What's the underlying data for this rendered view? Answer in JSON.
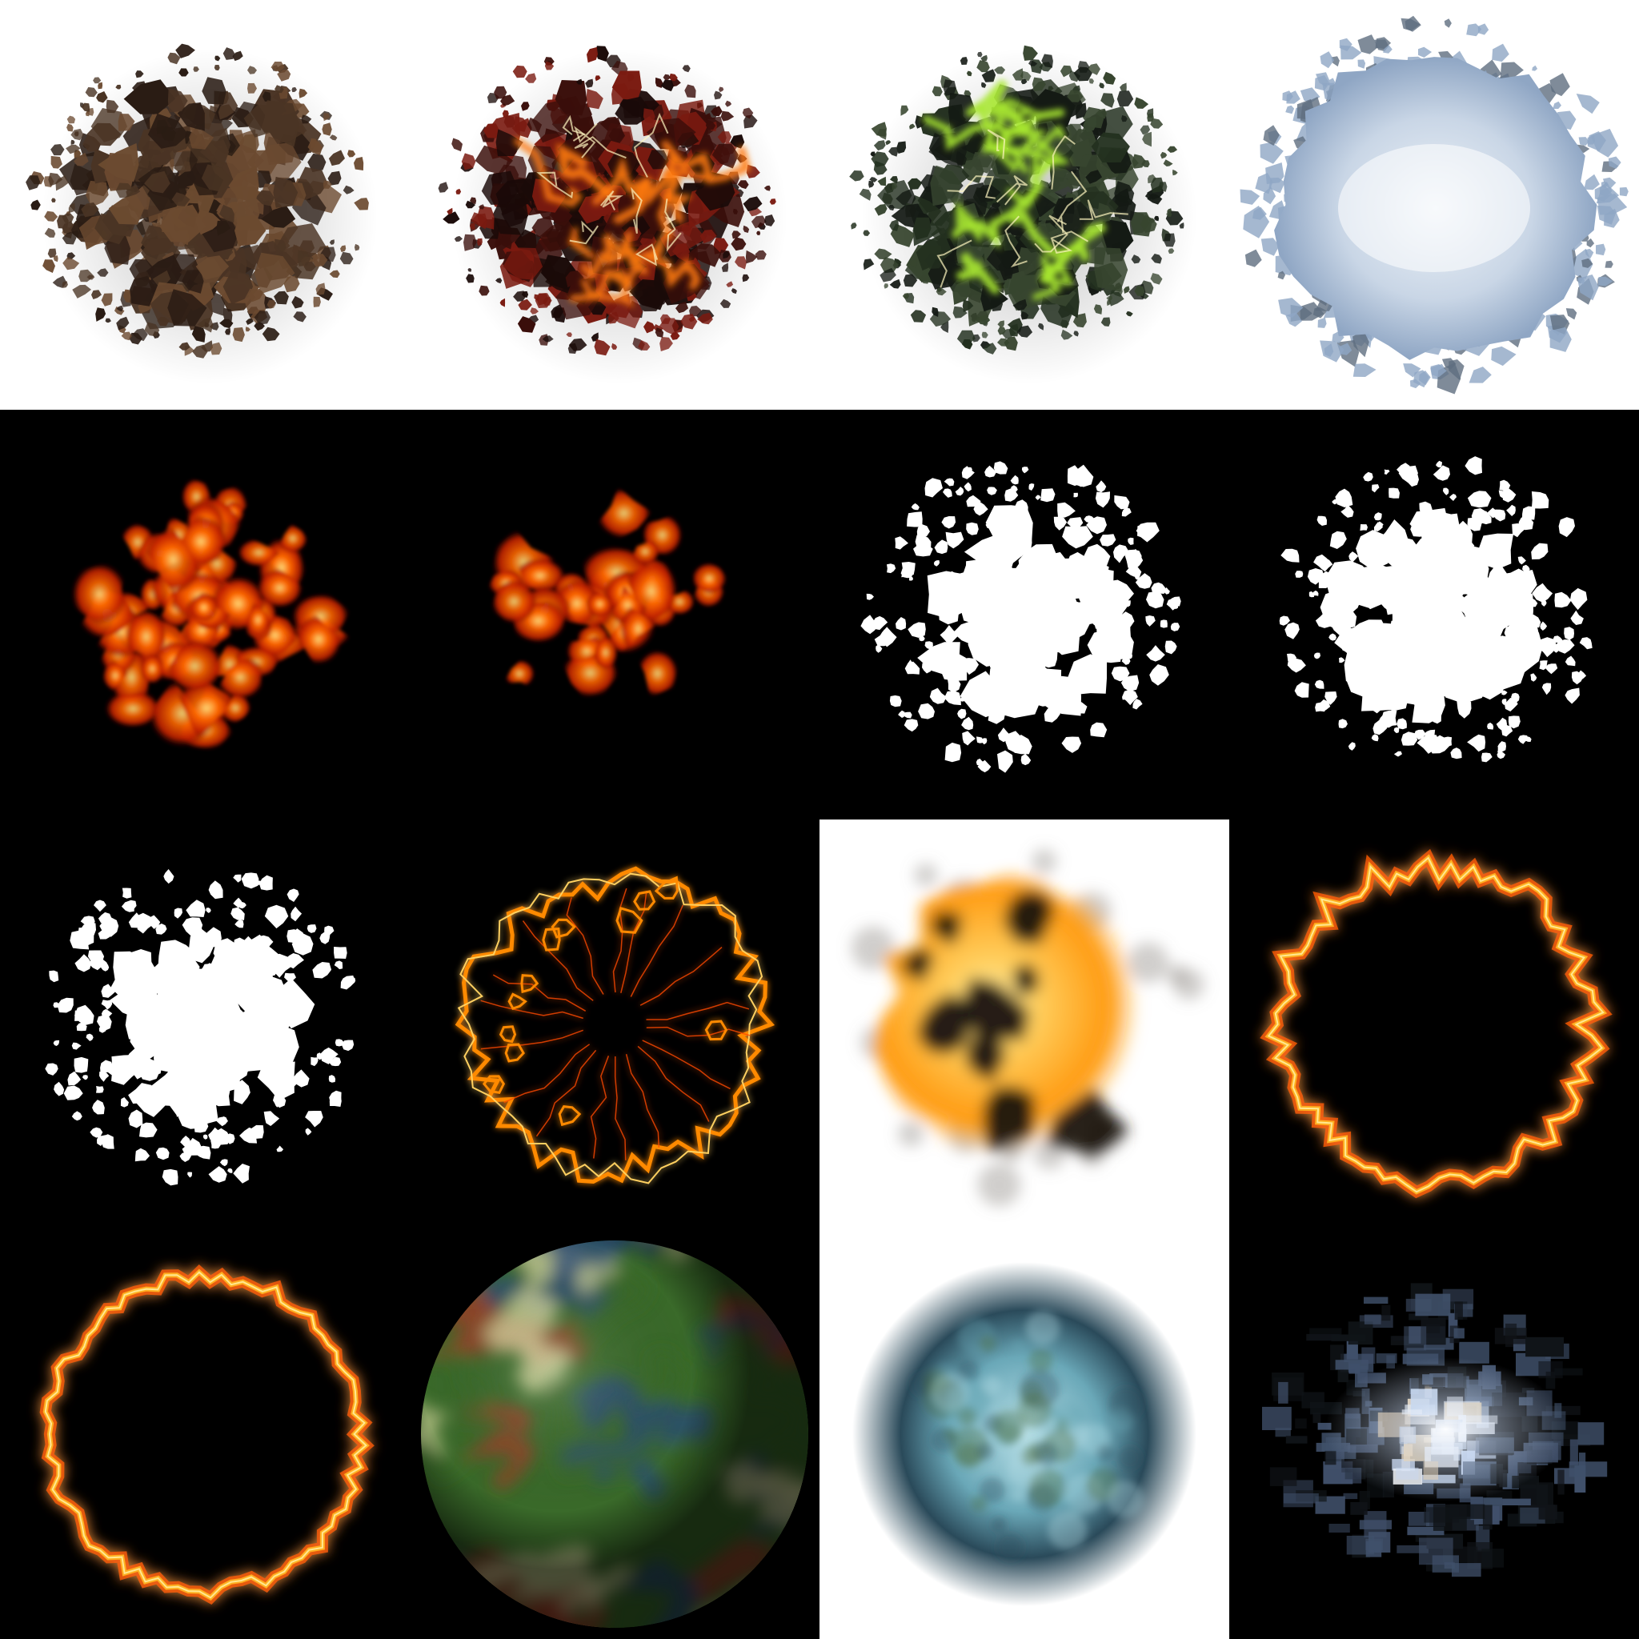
{
  "sprite_sheet": {
    "grid": {
      "columns": 4,
      "rows": 4
    },
    "tiles": [
      {
        "row": 0,
        "col": 0,
        "name": "rock-rubble-brown-decal",
        "background": "#ffffff",
        "kind": "rubble",
        "colors": [
          "#2a1c14",
          "#4a3424",
          "#6b4a30",
          "#1a1410"
        ]
      },
      {
        "row": 0,
        "col": 1,
        "name": "rock-rubble-lava-decal",
        "background": "#ffffff",
        "kind": "rubble-glow",
        "colors": [
          "#1a0a08",
          "#3a0e0a",
          "#7a1a10",
          "#ff7a10"
        ]
      },
      {
        "row": 0,
        "col": 2,
        "name": "rock-rubble-acid-decal",
        "background": "#ffffff",
        "kind": "rubble-glow",
        "colors": [
          "#141a14",
          "#23301f",
          "#37452f",
          "#a8e830"
        ]
      },
      {
        "row": 0,
        "col": 3,
        "name": "ice-crater-decal",
        "background": "#ffffff",
        "kind": "ice",
        "colors": [
          "#c9d6e6",
          "#8fa6c4",
          "#eef3f8",
          "#5f6e80"
        ]
      },
      {
        "row": 1,
        "col": 0,
        "name": "fire-emissive-map-full",
        "background": "#000000",
        "kind": "embers",
        "colors": [
          "#5a0800",
          "#c02000",
          "#ff6a00",
          "#ffe080"
        ]
      },
      {
        "row": 1,
        "col": 1,
        "name": "fire-emissive-map-sparse",
        "background": "#000000",
        "kind": "embers-sparse",
        "colors": [
          "#5a0800",
          "#c02000",
          "#ff6a00",
          "#ffe080"
        ]
      },
      {
        "row": 1,
        "col": 2,
        "name": "rubble-alpha-mask-a",
        "background": "#000000",
        "kind": "mask",
        "colors": [
          "#ffffff"
        ]
      },
      {
        "row": 1,
        "col": 3,
        "name": "rubble-alpha-mask-b",
        "background": "#000000",
        "kind": "mask",
        "colors": [
          "#ffffff"
        ]
      },
      {
        "row": 2,
        "col": 0,
        "name": "rubble-alpha-mask-c",
        "background": "#000000",
        "kind": "mask",
        "colors": [
          "#ffffff"
        ]
      },
      {
        "row": 2,
        "col": 1,
        "name": "fire-crack-ring",
        "background": "#000000",
        "kind": "crack-ring",
        "colors": [
          "#ff8a00",
          "#ffd060",
          "#ff4a00"
        ]
      },
      {
        "row": 2,
        "col": 2,
        "name": "fireball-smoke-burst",
        "background": "#ffffff",
        "kind": "fireball",
        "colors": [
          "#ff9a10",
          "#ffd060",
          "#1a1410",
          "#8a8480"
        ]
      },
      {
        "row": 2,
        "col": 3,
        "name": "fire-ring-jagged",
        "background": "#000000",
        "kind": "ring",
        "colors": [
          "#ff5a00",
          "#ffb020",
          "#ffe890"
        ]
      },
      {
        "row": 3,
        "col": 0,
        "name": "fire-ring-round",
        "background": "#000000",
        "kind": "ring",
        "colors": [
          "#ff5a00",
          "#ffb020",
          "#ffe890"
        ]
      },
      {
        "row": 3,
        "col": 1,
        "name": "nebula-swirl-orb",
        "background": "#000000",
        "kind": "orb",
        "colors": [
          "#3a6a2a",
          "#a83a2a",
          "#2a4a7a",
          "#d8d8a0",
          "#1a1a1a"
        ]
      },
      {
        "row": 3,
        "col": 2,
        "name": "cloudy-cyan-orb",
        "background": "#ffffff",
        "kind": "cloud-orb",
        "colors": [
          "#2a4a5a",
          "#6aa8b8",
          "#b8e0e8",
          "#4a6a3a"
        ]
      },
      {
        "row": 3,
        "col": 3,
        "name": "glitch-light-burst",
        "background": "#000000",
        "kind": "glitch",
        "colors": [
          "#ffffff",
          "#c8d8f0",
          "#f0d0a0",
          "#40506a",
          "#101418"
        ]
      }
    ]
  }
}
